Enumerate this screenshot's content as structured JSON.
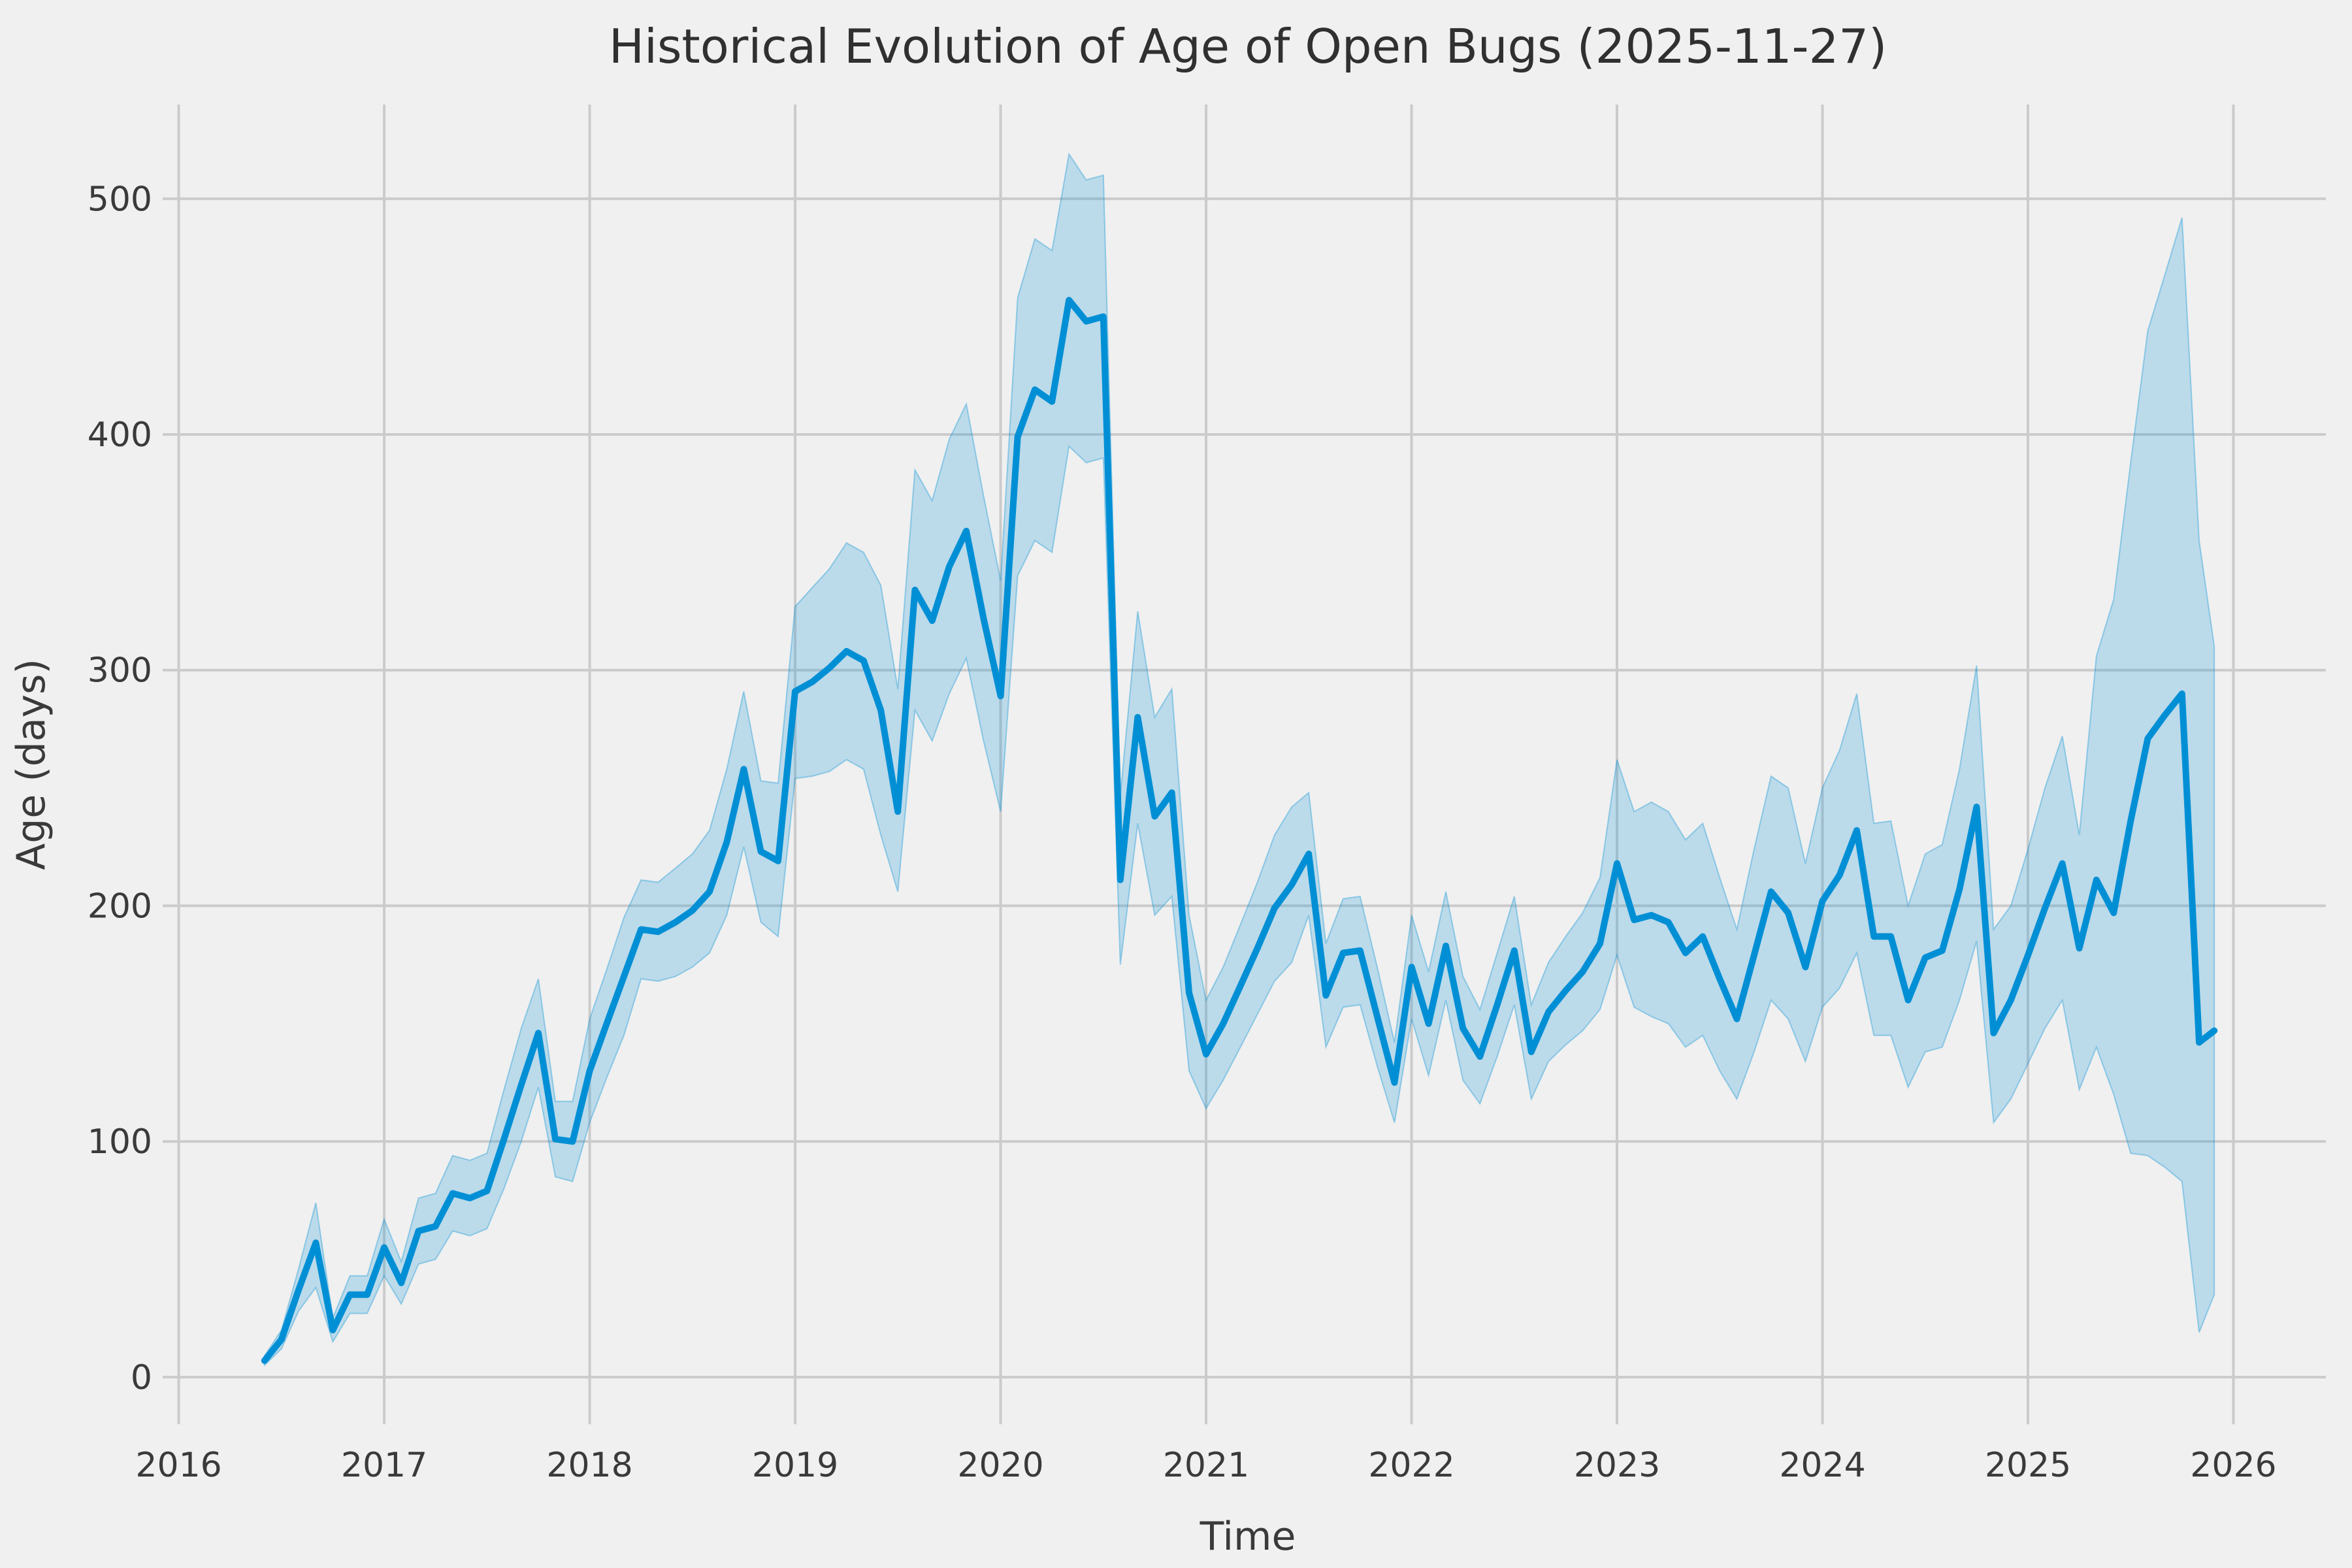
{
  "chart_data": {
    "type": "line",
    "title": "Historical Evolution of Age of Open Bugs (2025-11-27)",
    "xlabel": "Time",
    "ylabel": "Age (days)",
    "x_unit": "decimal_year",
    "x_start": "2016-06",
    "x_end": "2025-11-27",
    "grid": true,
    "legend_position": "none",
    "xticks": [
      2016,
      2017,
      2018,
      2019,
      2020,
      2021,
      2022,
      2023,
      2024,
      2025,
      2026
    ],
    "yticks": [
      0,
      100,
      200,
      300,
      400,
      500
    ],
    "xlim": [
      2015.96,
      2026.45
    ],
    "ylim": [
      -20,
      540
    ],
    "x": [
      2016.417,
      2016.5,
      2016.583,
      2016.667,
      2016.75,
      2016.833,
      2016.917,
      2017.0,
      2017.083,
      2017.167,
      2017.25,
      2017.333,
      2017.417,
      2017.5,
      2017.583,
      2017.667,
      2017.75,
      2017.833,
      2017.917,
      2018.0,
      2018.083,
      2018.167,
      2018.25,
      2018.333,
      2018.417,
      2018.5,
      2018.583,
      2018.667,
      2018.75,
      2018.833,
      2018.917,
      2019.0,
      2019.083,
      2019.167,
      2019.25,
      2019.333,
      2019.417,
      2019.5,
      2019.583,
      2019.667,
      2019.75,
      2019.833,
      2019.917,
      2020.0,
      2020.083,
      2020.167,
      2020.25,
      2020.333,
      2020.417,
      2020.5,
      2020.583,
      2020.667,
      2020.75,
      2020.833,
      2020.917,
      2021.0,
      2021.083,
      2021.167,
      2021.25,
      2021.333,
      2021.417,
      2021.5,
      2021.583,
      2021.667,
      2021.75,
      2021.833,
      2021.917,
      2022.0,
      2022.083,
      2022.167,
      2022.25,
      2022.333,
      2022.417,
      2022.5,
      2022.583,
      2022.667,
      2022.75,
      2022.833,
      2022.917,
      2023.0,
      2023.083,
      2023.167,
      2023.25,
      2023.333,
      2023.417,
      2023.5,
      2023.583,
      2023.667,
      2023.75,
      2023.833,
      2023.917,
      2024.0,
      2024.083,
      2024.167,
      2024.25,
      2024.333,
      2024.417,
      2024.5,
      2024.583,
      2024.667,
      2024.75,
      2024.833,
      2024.917,
      2025.0,
      2025.083,
      2025.167,
      2025.25,
      2025.333,
      2025.417,
      2025.5,
      2025.583,
      2025.667,
      2025.75,
      2025.833,
      2025.907
    ],
    "series": [
      {
        "name": "mean age of open bugs",
        "values": [
          7,
          16,
          37,
          57,
          20,
          35,
          35,
          55,
          40,
          62,
          64,
          78,
          76,
          79,
          101,
          124,
          146,
          101,
          100,
          130,
          150,
          170,
          190,
          189,
          193,
          198,
          206,
          227,
          258,
          223,
          219,
          291,
          295,
          301,
          308,
          304,
          283,
          240,
          334,
          321,
          344,
          359,
          322,
          289,
          399,
          419,
          414,
          457,
          448,
          450,
          211,
          280,
          238,
          248,
          163,
          137,
          150,
          166,
          182,
          199,
          209,
          222,
          162,
          180,
          181,
          153,
          125,
          174,
          150,
          183,
          148,
          136,
          158,
          181,
          138,
          155,
          164,
          172,
          184,
          218,
          194,
          196,
          193,
          180,
          187,
          169,
          152,
          179,
          206,
          197,
          174,
          202,
          213,
          232,
          187,
          187,
          160,
          178,
          181,
          207,
          242,
          146,
          160,
          179,
          199,
          218,
          182,
          211,
          197,
          236,
          271,
          281,
          290,
          142,
          147
        ]
      }
    ],
    "band": {
      "name": "confidence-interval",
      "lower": [
        5,
        12,
        28,
        38,
        15,
        27,
        27,
        43,
        31,
        48,
        50,
        62,
        60,
        63,
        80,
        100,
        123,
        85,
        83,
        108,
        127,
        145,
        169,
        168,
        170,
        174,
        180,
        196,
        225,
        193,
        187,
        254,
        255,
        257,
        262,
        258,
        230,
        206,
        283,
        270,
        290,
        305,
        270,
        240,
        340,
        355,
        350,
        395,
        388,
        390,
        175,
        235,
        196,
        204,
        130,
        114,
        126,
        140,
        154,
        168,
        176,
        196,
        140,
        157,
        158,
        132,
        108,
        152,
        128,
        160,
        126,
        116,
        136,
        158,
        118,
        134,
        141,
        147,
        156,
        179,
        157,
        153,
        150,
        140,
        145,
        130,
        118,
        138,
        160,
        152,
        134,
        157,
        165,
        180,
        145,
        145,
        123,
        138,
        140,
        160,
        185,
        108,
        118,
        133,
        148,
        160,
        122,
        140,
        120,
        95,
        94,
        89,
        83,
        19,
        35
      ],
      "upper": [
        9,
        20,
        46,
        74,
        25,
        43,
        43,
        67,
        49,
        76,
        78,
        94,
        92,
        95,
        122,
        148,
        169,
        117,
        117,
        152,
        173,
        195,
        211,
        210,
        216,
        222,
        232,
        258,
        291,
        253,
        252,
        327,
        335,
        343,
        354,
        350,
        336,
        292,
        385,
        372,
        398,
        413,
        374,
        338,
        458,
        483,
        478,
        519,
        508,
        510,
        247,
        325,
        280,
        292,
        196,
        160,
        174,
        192,
        210,
        230,
        242,
        248,
        184,
        203,
        204,
        174,
        142,
        196,
        172,
        206,
        170,
        156,
        180,
        204,
        158,
        176,
        187,
        197,
        212,
        262,
        240,
        244,
        240,
        228,
        235,
        212,
        190,
        224,
        255,
        250,
        218,
        250,
        266,
        290,
        235,
        236,
        200,
        222,
        226,
        258,
        302,
        190,
        200,
        224,
        250,
        272,
        230,
        306,
        330,
        388,
        444,
        468,
        492,
        355,
        310
      ]
    },
    "colors": {
      "line": "#008fd5",
      "band": "rgba(0,143,213,0.22)",
      "band_edge": "rgba(0,143,213,0.35)",
      "background": "#f0f0f0",
      "grid": "#cbcbcb",
      "text": "#3a3a3a"
    }
  }
}
